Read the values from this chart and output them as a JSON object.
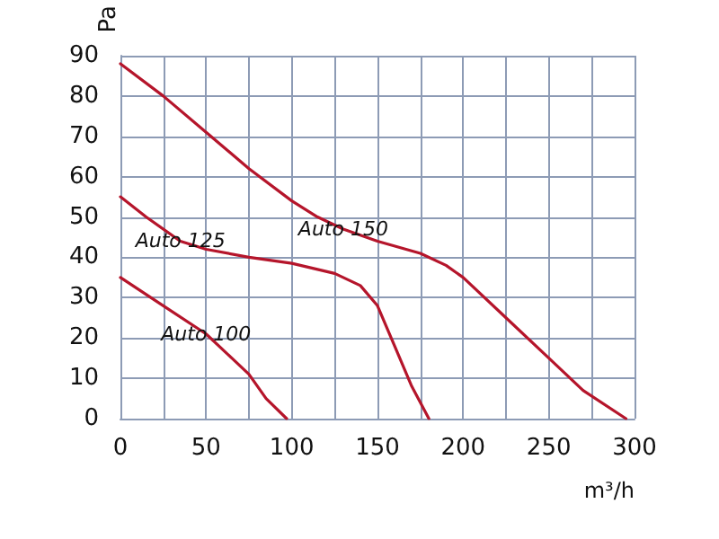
{
  "chart_data": {
    "type": "line",
    "xlabel": "m³/h",
    "ylabel": "Pa",
    "xlim": [
      0,
      300
    ],
    "xticks": [
      0,
      50,
      100,
      150,
      200,
      250,
      300
    ],
    "ylim": [
      0,
      90
    ],
    "yticks": [
      0,
      10,
      20,
      30,
      40,
      50,
      60,
      70,
      80,
      90
    ],
    "grid": true,
    "legend": false,
    "marker": "none",
    "line_style": "solid",
    "series": [
      {
        "name": "Auto 100",
        "color": "#b5152b",
        "x": [
          0,
          25,
          50,
          65,
          75,
          85,
          97
        ],
        "values": [
          35,
          28,
          21,
          15,
          11,
          5,
          0
        ]
      },
      {
        "name": "Auto 125",
        "color": "#b5152b",
        "x": [
          0,
          15,
          35,
          50,
          75,
          100,
          125,
          140,
          150,
          160,
          170,
          180
        ],
        "values": [
          55,
          50,
          44,
          42,
          40,
          38.5,
          36,
          33,
          28,
          18,
          8,
          0
        ]
      },
      {
        "name": "Auto 150",
        "color": "#b5152b",
        "x": [
          0,
          25,
          50,
          75,
          100,
          115,
          130,
          150,
          175,
          190,
          200,
          225,
          250,
          270,
          295
        ],
        "values": [
          88,
          80,
          71,
          62,
          54,
          50,
          47,
          44,
          41,
          38,
          35,
          25,
          15,
          7,
          0
        ]
      }
    ]
  }
}
